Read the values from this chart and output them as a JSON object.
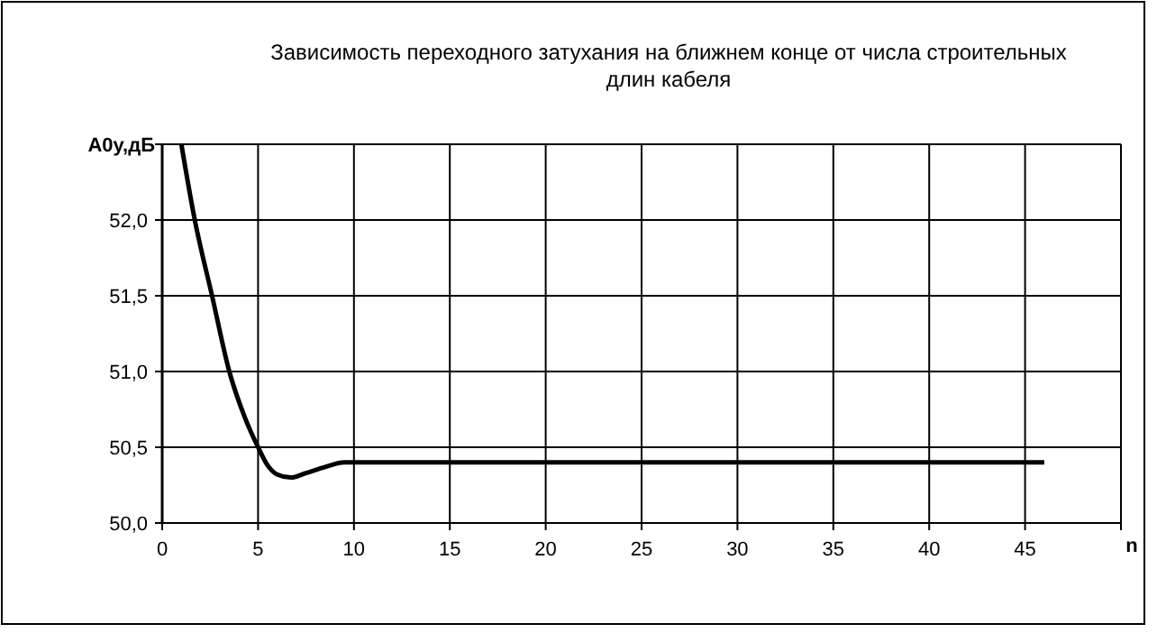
{
  "chart_data": {
    "type": "line",
    "title": "Зависимость переходного затухания на ближнем конце от числа строительных\nдлин кабеля",
    "xlabel": "n",
    "ylabel": "A0у,дБ",
    "x": [
      1,
      1.7,
      2.6,
      3.5,
      4.3,
      5,
      5.5,
      6,
      6.7,
      7.5,
      8.5,
      9.5,
      10,
      15,
      20,
      25,
      30,
      35,
      40,
      46
    ],
    "series": [
      {
        "color": "#000000",
        "values": [
          52.5,
          52.0,
          51.5,
          51.0,
          50.7,
          50.5,
          50.38,
          50.32,
          50.3,
          50.33,
          50.37,
          50.4,
          50.4,
          50.4,
          50.4,
          50.4,
          50.4,
          50.4,
          50.4,
          50.4
        ]
      }
    ],
    "xlim": [
      0,
      50
    ],
    "xticks": [
      0,
      5,
      10,
      15,
      20,
      25,
      30,
      35,
      40,
      45,
      {
        "value": 50,
        "label": null
      }
    ],
    "ylim": [
      50,
      52.5
    ],
    "yticks": [
      {
        "value": 50,
        "label": "50,0"
      },
      {
        "value": 50.5,
        "label": "50,5"
      },
      {
        "value": 51,
        "label": "51,0"
      },
      {
        "value": 51.5,
        "label": "51,5"
      },
      {
        "value": 52,
        "label": "52,0"
      },
      {
        "value": 52.5,
        "label": null
      }
    ],
    "grid": true,
    "marker": "none",
    "line_style": "solid"
  }
}
